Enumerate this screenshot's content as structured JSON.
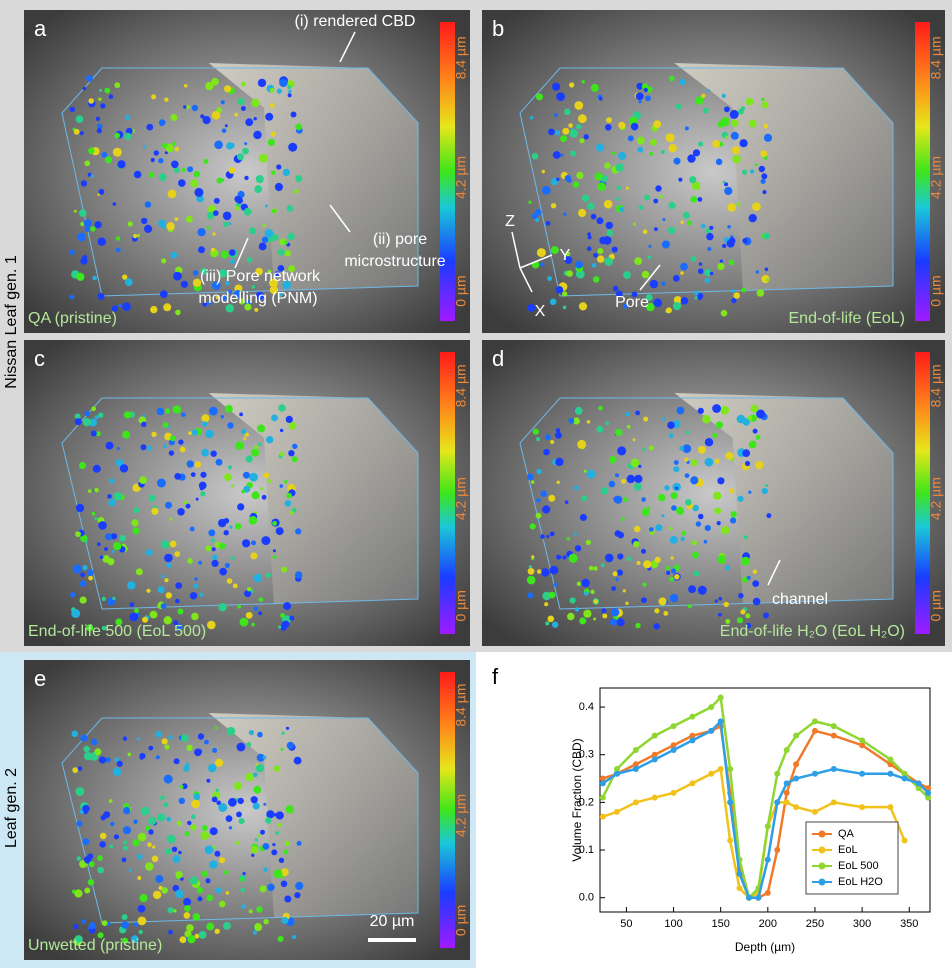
{
  "row_labels": [
    "Nissan Leaf gen. 1",
    "Leaf gen. 2"
  ],
  "colorbar_ticks": [
    "8.4 µm",
    "4.2 µm",
    "0 µm"
  ],
  "panels": [
    {
      "letter": "a",
      "caption": "QA (pristine)"
    },
    {
      "letter": "b",
      "caption": "End-of-life (EoL)"
    },
    {
      "letter": "c",
      "caption": "End-of-life 500 (EoL 500)"
    },
    {
      "letter": "d",
      "caption": "End-of-life H₂O (EoL H₂O)"
    },
    {
      "letter": "e",
      "caption": "Unwetted (pristine)"
    }
  ],
  "annotations": {
    "rendered_cbd": "(i) rendered CBD",
    "pore_microstructure": [
      "(ii) pore",
      "microstructure"
    ],
    "pnm": [
      "(iii) Pore network",
      "modelling (PNM)"
    ],
    "axes": [
      "Z",
      "Y",
      "X"
    ],
    "pore": "Pore",
    "channel": "channel",
    "scale_bar": "20 µm"
  },
  "chart_data": {
    "type": "line",
    "panel_label": "f",
    "xlabel": "Depth (µm)",
    "ylabel": "Volume Fraction (CBD)",
    "x": [
      25,
      40,
      60,
      80,
      100,
      120,
      140,
      150,
      160,
      170,
      180,
      190,
      200,
      210,
      220,
      230,
      250,
      270,
      300,
      330,
      345,
      360,
      370
    ],
    "series": [
      {
        "name": "QA",
        "color": "#f07a2a",
        "values": [
          0.25,
          0.26,
          0.28,
          0.3,
          0.32,
          0.34,
          0.35,
          0.36,
          0.22,
          0.06,
          0.0,
          0.0,
          0.01,
          0.1,
          0.22,
          0.28,
          0.35,
          0.34,
          0.32,
          0.28,
          0.26,
          0.24,
          0.23
        ]
      },
      {
        "name": "EoL",
        "color": "#f2c21b",
        "values": [
          0.17,
          0.18,
          0.2,
          0.21,
          0.22,
          0.24,
          0.26,
          0.27,
          0.12,
          0.02,
          0.0,
          0.01,
          0.15,
          0.2,
          0.2,
          0.19,
          0.18,
          0.2,
          0.19,
          0.19,
          0.12,
          null,
          null
        ]
      },
      {
        "name": "EoL 500",
        "color": "#8fd631",
        "values": [
          0.21,
          0.27,
          0.31,
          0.34,
          0.36,
          0.38,
          0.4,
          0.42,
          0.27,
          0.08,
          0.0,
          0.02,
          0.15,
          0.26,
          0.31,
          0.34,
          0.37,
          0.36,
          0.33,
          0.29,
          0.26,
          0.23,
          0.21
        ]
      },
      {
        "name": "EoL H2O",
        "color": "#2e9fe6",
        "values": [
          0.24,
          0.26,
          0.27,
          0.29,
          0.31,
          0.33,
          0.35,
          0.37,
          0.2,
          0.05,
          0.0,
          0.0,
          0.08,
          0.2,
          0.24,
          0.25,
          0.26,
          0.27,
          0.26,
          0.26,
          0.25,
          0.24,
          0.22
        ]
      }
    ],
    "xlim": [
      22,
      372
    ],
    "ylim": [
      -0.03,
      0.44
    ],
    "xticks": [
      50,
      100,
      150,
      200,
      250,
      300,
      350
    ],
    "yticks": [
      {
        "value": 0,
        "label": "0.0"
      },
      0.1,
      0.2,
      0.3,
      0.4
    ],
    "legend": "lower right"
  }
}
